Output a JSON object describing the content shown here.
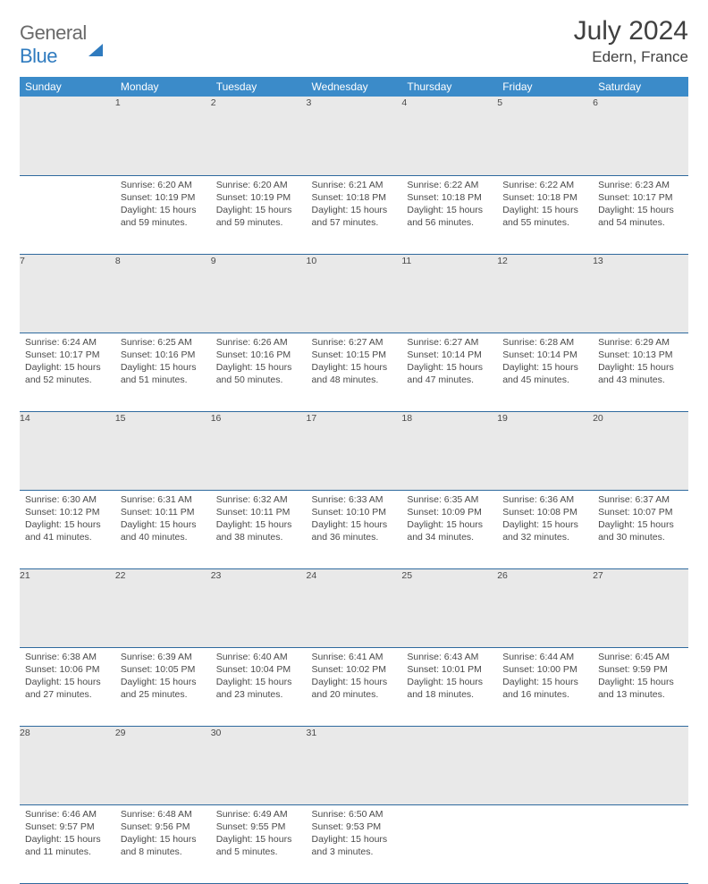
{
  "logo": {
    "word1": "General",
    "word2": "Blue"
  },
  "header": {
    "month_title": "July 2024",
    "location": "Edern, France"
  },
  "colors": {
    "header_bg": "#3b8bc9",
    "header_text": "#ffffff",
    "daynum_bg": "#e9e9e9",
    "daynum_text": "#707070",
    "row_border": "#2f6a9e",
    "body_text": "#4a4a4a",
    "title_text": "#404040",
    "logo_gray": "#6a6a6a",
    "logo_blue": "#2f7bbf",
    "page_bg": "#ffffff"
  },
  "typography": {
    "month_title_fontsize": 30,
    "location_fontsize": 17,
    "dayheader_fontsize": 12,
    "daynum_fontsize": 11.5,
    "cell_fontsize": 10.5,
    "logo_fontsize": 22
  },
  "calendar": {
    "type": "table",
    "columns": [
      "Sunday",
      "Monday",
      "Tuesday",
      "Wednesday",
      "Thursday",
      "Friday",
      "Saturday"
    ],
    "weeks": [
      [
        null,
        {
          "n": "1",
          "sunrise": "6:20 AM",
          "sunset": "10:19 PM",
          "daylight": "15 hours and 59 minutes."
        },
        {
          "n": "2",
          "sunrise": "6:20 AM",
          "sunset": "10:19 PM",
          "daylight": "15 hours and 59 minutes."
        },
        {
          "n": "3",
          "sunrise": "6:21 AM",
          "sunset": "10:18 PM",
          "daylight": "15 hours and 57 minutes."
        },
        {
          "n": "4",
          "sunrise": "6:22 AM",
          "sunset": "10:18 PM",
          "daylight": "15 hours and 56 minutes."
        },
        {
          "n": "5",
          "sunrise": "6:22 AM",
          "sunset": "10:18 PM",
          "daylight": "15 hours and 55 minutes."
        },
        {
          "n": "6",
          "sunrise": "6:23 AM",
          "sunset": "10:17 PM",
          "daylight": "15 hours and 54 minutes."
        }
      ],
      [
        {
          "n": "7",
          "sunrise": "6:24 AM",
          "sunset": "10:17 PM",
          "daylight": "15 hours and 52 minutes."
        },
        {
          "n": "8",
          "sunrise": "6:25 AM",
          "sunset": "10:16 PM",
          "daylight": "15 hours and 51 minutes."
        },
        {
          "n": "9",
          "sunrise": "6:26 AM",
          "sunset": "10:16 PM",
          "daylight": "15 hours and 50 minutes."
        },
        {
          "n": "10",
          "sunrise": "6:27 AM",
          "sunset": "10:15 PM",
          "daylight": "15 hours and 48 minutes."
        },
        {
          "n": "11",
          "sunrise": "6:27 AM",
          "sunset": "10:14 PM",
          "daylight": "15 hours and 47 minutes."
        },
        {
          "n": "12",
          "sunrise": "6:28 AM",
          "sunset": "10:14 PM",
          "daylight": "15 hours and 45 minutes."
        },
        {
          "n": "13",
          "sunrise": "6:29 AM",
          "sunset": "10:13 PM",
          "daylight": "15 hours and 43 minutes."
        }
      ],
      [
        {
          "n": "14",
          "sunrise": "6:30 AM",
          "sunset": "10:12 PM",
          "daylight": "15 hours and 41 minutes."
        },
        {
          "n": "15",
          "sunrise": "6:31 AM",
          "sunset": "10:11 PM",
          "daylight": "15 hours and 40 minutes."
        },
        {
          "n": "16",
          "sunrise": "6:32 AM",
          "sunset": "10:11 PM",
          "daylight": "15 hours and 38 minutes."
        },
        {
          "n": "17",
          "sunrise": "6:33 AM",
          "sunset": "10:10 PM",
          "daylight": "15 hours and 36 minutes."
        },
        {
          "n": "18",
          "sunrise": "6:35 AM",
          "sunset": "10:09 PM",
          "daylight": "15 hours and 34 minutes."
        },
        {
          "n": "19",
          "sunrise": "6:36 AM",
          "sunset": "10:08 PM",
          "daylight": "15 hours and 32 minutes."
        },
        {
          "n": "20",
          "sunrise": "6:37 AM",
          "sunset": "10:07 PM",
          "daylight": "15 hours and 30 minutes."
        }
      ],
      [
        {
          "n": "21",
          "sunrise": "6:38 AM",
          "sunset": "10:06 PM",
          "daylight": "15 hours and 27 minutes."
        },
        {
          "n": "22",
          "sunrise": "6:39 AM",
          "sunset": "10:05 PM",
          "daylight": "15 hours and 25 minutes."
        },
        {
          "n": "23",
          "sunrise": "6:40 AM",
          "sunset": "10:04 PM",
          "daylight": "15 hours and 23 minutes."
        },
        {
          "n": "24",
          "sunrise": "6:41 AM",
          "sunset": "10:02 PM",
          "daylight": "15 hours and 20 minutes."
        },
        {
          "n": "25",
          "sunrise": "6:43 AM",
          "sunset": "10:01 PM",
          "daylight": "15 hours and 18 minutes."
        },
        {
          "n": "26",
          "sunrise": "6:44 AM",
          "sunset": "10:00 PM",
          "daylight": "15 hours and 16 minutes."
        },
        {
          "n": "27",
          "sunrise": "6:45 AM",
          "sunset": "9:59 PM",
          "daylight": "15 hours and 13 minutes."
        }
      ],
      [
        {
          "n": "28",
          "sunrise": "6:46 AM",
          "sunset": "9:57 PM",
          "daylight": "15 hours and 11 minutes."
        },
        {
          "n": "29",
          "sunrise": "6:48 AM",
          "sunset": "9:56 PM",
          "daylight": "15 hours and 8 minutes."
        },
        {
          "n": "30",
          "sunrise": "6:49 AM",
          "sunset": "9:55 PM",
          "daylight": "15 hours and 5 minutes."
        },
        {
          "n": "31",
          "sunrise": "6:50 AM",
          "sunset": "9:53 PM",
          "daylight": "15 hours and 3 minutes."
        },
        null,
        null,
        null
      ]
    ]
  },
  "labels": {
    "sunrise": "Sunrise:",
    "sunset": "Sunset:",
    "daylight": "Daylight:"
  }
}
